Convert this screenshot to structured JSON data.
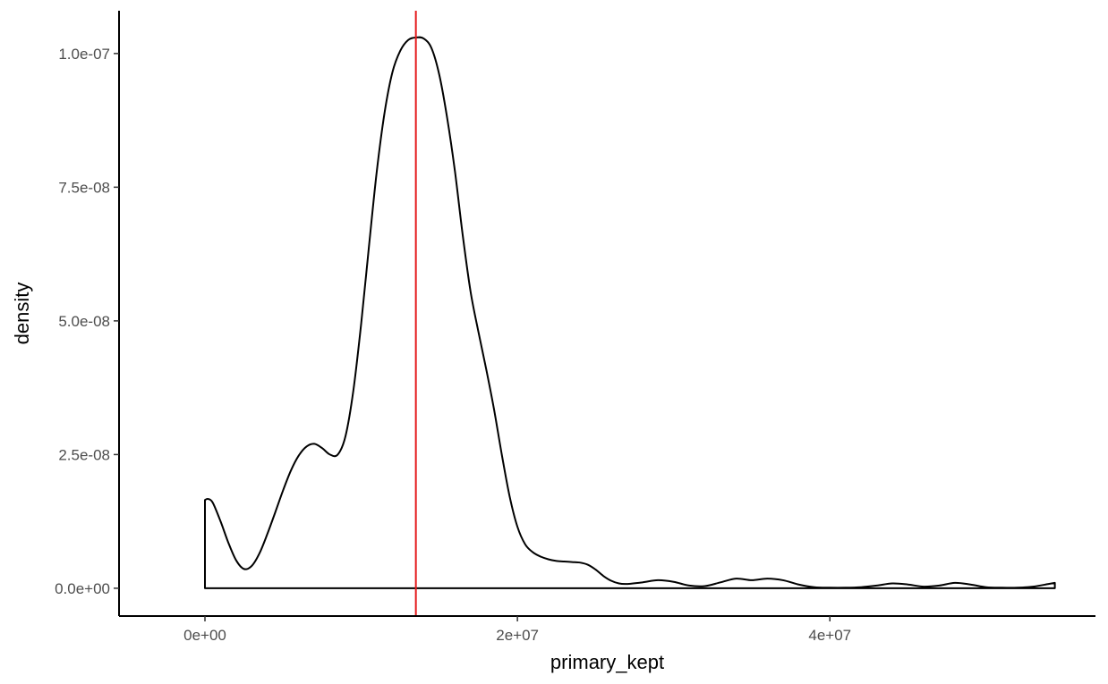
{
  "chart_data": {
    "type": "area",
    "title": "",
    "xlabel": "primary_kept",
    "ylabel": "density",
    "xlim": [
      -5500000,
      57000000
    ],
    "ylim": [
      -5.2e-09,
      1.08e-07
    ],
    "x_ticks": [
      {
        "value": 0,
        "label": "0e+00"
      },
      {
        "value": 20000000,
        "label": "2e+07"
      },
      {
        "value": 40000000,
        "label": "4e+07"
      }
    ],
    "y_ticks": [
      {
        "value": 0,
        "label": "0.0e+00"
      },
      {
        "value": 2.5e-08,
        "label": "2.5e-08"
      },
      {
        "value": 5e-08,
        "label": "5.0e-08"
      },
      {
        "value": 7.5e-08,
        "label": "7.5e-08"
      },
      {
        "value": 1e-07,
        "label": "1.0e-07"
      }
    ],
    "grid": false,
    "legend": "none",
    "vline": {
      "x": 13500000,
      "color": "#e41a1c"
    },
    "series": [
      {
        "color": "#000000",
        "x": [
          0,
          200000,
          500000,
          1000000,
          1500000,
          2000000,
          2500000,
          3000000,
          3500000,
          4000000,
          4500000,
          5000000,
          5500000,
          6000000,
          6500000,
          7000000,
          7500000,
          8000000,
          8500000,
          9000000,
          9500000,
          10000000,
          10500000,
          11000000,
          11500000,
          12000000,
          12500000,
          13000000,
          13500000,
          14000000,
          14500000,
          15000000,
          15500000,
          16000000,
          16500000,
          17000000,
          17500000,
          18000000,
          18500000,
          19000000,
          19500000,
          20000000,
          20500000,
          21000000,
          21500000,
          22000000,
          22500000,
          23000000,
          23500000,
          24000000,
          24500000,
          25000000,
          25500000,
          26000000,
          26500000,
          27000000,
          28000000,
          29000000,
          30000000,
          31000000,
          32000000,
          33000000,
          34000000,
          35000000,
          36000000,
          37000000,
          38000000,
          39000000,
          40000000,
          41000000,
          42000000,
          43000000,
          44000000,
          45000000,
          46000000,
          47000000,
          48000000,
          49000000,
          50000000,
          51000000,
          52000000,
          53000000,
          54000000,
          54400000
        ],
        "y": [
          1.65e-08,
          1.67e-08,
          1.6e-08,
          1.25e-08,
          8.5e-09,
          5.2e-09,
          3.6e-09,
          4.2e-09,
          6.6e-09,
          1.02e-08,
          1.42e-08,
          1.83e-08,
          2.2e-08,
          2.48e-08,
          2.65e-08,
          2.7e-08,
          2.62e-08,
          2.5e-08,
          2.5e-08,
          2.85e-08,
          3.7e-08,
          4.95e-08,
          6.4e-08,
          7.8e-08,
          8.9e-08,
          9.65e-08,
          1.005e-07,
          1.025e-07,
          1.03e-07,
          1.028e-07,
          1.01e-07,
          9.6e-08,
          8.8e-08,
          7.8e-08,
          6.6e-08,
          5.55e-08,
          4.8e-08,
          4.1e-08,
          3.35e-08,
          2.5e-08,
          1.72e-08,
          1.15e-08,
          8.2e-09,
          6.7e-09,
          5.9e-09,
          5.4e-09,
          5.1e-09,
          5e-09,
          4.9e-09,
          4.8e-09,
          4.4e-09,
          3.5e-09,
          2.3e-09,
          1.4e-09,
          9e-10,
          8e-10,
          1.1e-09,
          1.5e-09,
          1.2e-09,
          5e-10,
          4e-10,
          1.1e-09,
          1.8e-09,
          1.5e-09,
          1.8e-09,
          1.5e-09,
          7e-10,
          2e-10,
          1e-10,
          1e-10,
          2e-10,
          5e-10,
          9e-10,
          7e-10,
          3e-10,
          5e-10,
          1e-09,
          7e-10,
          2e-10,
          1e-10,
          1e-10,
          3e-10,
          8e-10,
          1e-09
        ]
      }
    ]
  }
}
